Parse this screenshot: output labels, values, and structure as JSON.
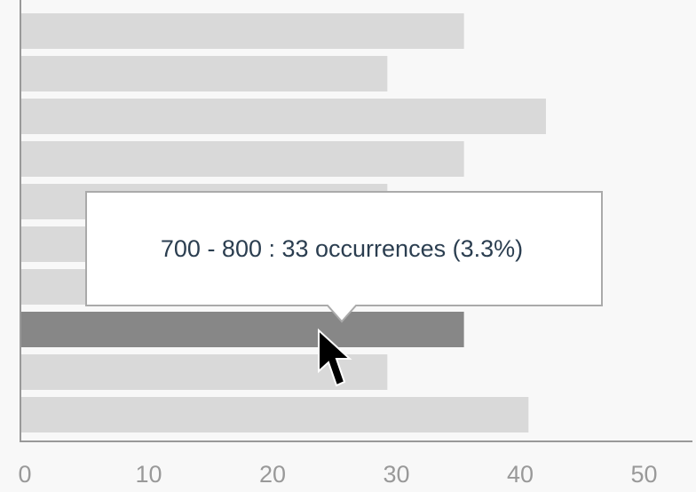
{
  "chart_data": {
    "type": "bar",
    "orientation": "horizontal",
    "values": [
      33,
      27.3,
      39.1,
      33,
      27.3,
      27.3,
      27.3,
      33,
      27.3,
      37.8
    ],
    "color": "#d9d9d9",
    "highlight_color": "#878787",
    "highlight": 7,
    "tooltip": "700 - 800 : 33 occurrences (3.3%)",
    "xlim": [
      0,
      50
    ],
    "xticks": [
      0,
      10,
      20,
      30,
      40,
      50
    ]
  }
}
